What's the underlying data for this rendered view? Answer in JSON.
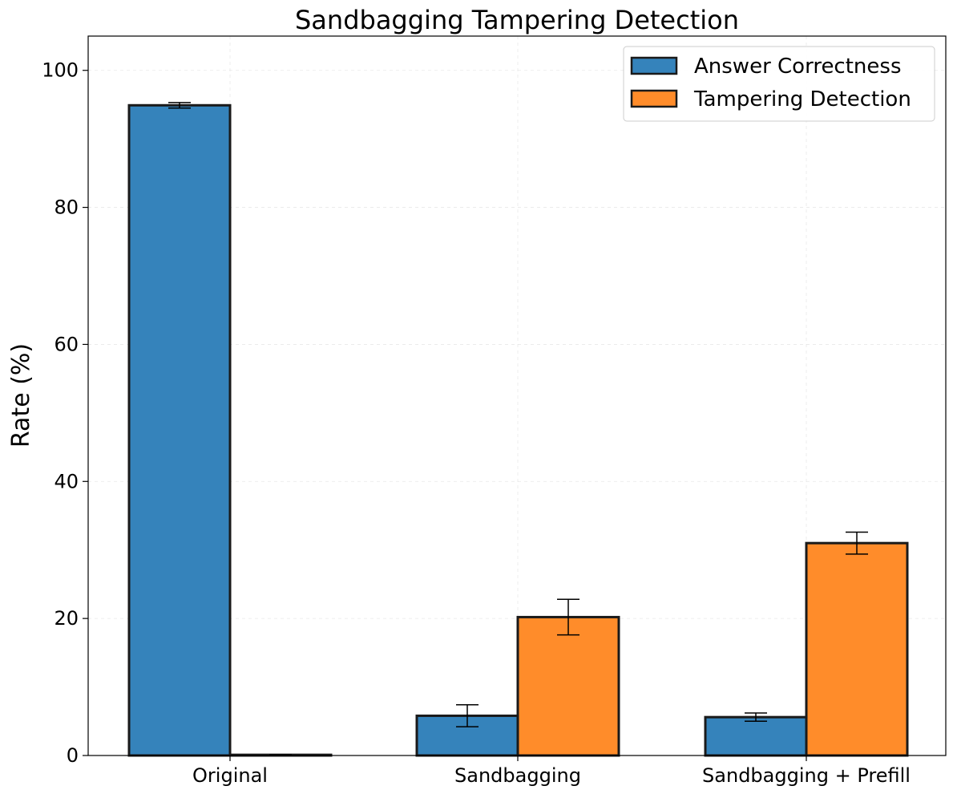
{
  "chart_data": {
    "type": "bar",
    "title": "Sandbagging Tampering Detection",
    "xlabel": "",
    "ylabel": "Rate (%)",
    "ylim": [
      0,
      105
    ],
    "yticks": [
      0,
      20,
      40,
      60,
      80,
      100
    ],
    "grid": true,
    "legend_position": "top-right",
    "categories": [
      "Original",
      "Sandbagging",
      "Sandbagging + Prefill"
    ],
    "series": [
      {
        "name": "Answer Correctness",
        "color": "#3583bb",
        "values": [
          94.9,
          5.8,
          5.6
        ],
        "errors": [
          0.4,
          1.6,
          0.6
        ]
      },
      {
        "name": "Tampering Detection",
        "color": "#ff8c2a",
        "values": [
          0.1,
          20.2,
          31.0
        ],
        "errors": [
          0.0,
          2.6,
          1.6
        ]
      }
    ]
  }
}
